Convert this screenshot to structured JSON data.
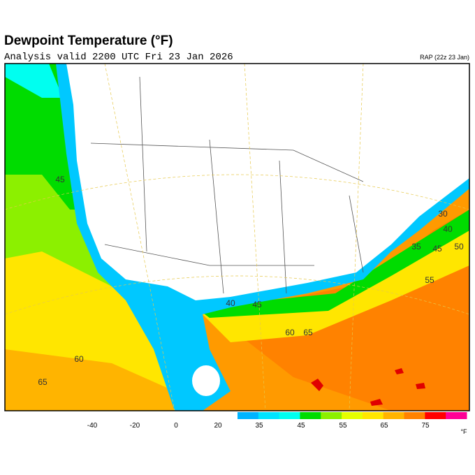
{
  "header": {
    "title": "Dewpoint Temperature (°F)",
    "subtitle": "Analysis valid 2200 UTC Fri 23 Jan 2026",
    "model": "RAP (22z 23 Jan)"
  },
  "contour_labels": [
    45,
    30,
    40,
    35,
    45,
    50,
    55,
    40,
    45,
    60,
    65,
    60,
    65
  ],
  "colorbar": {
    "ticks": [
      -40,
      -20,
      0,
      20,
      35,
      45,
      55,
      65,
      75
    ],
    "colors": [
      "#00b4ff",
      "#00e4ff",
      "#00fff0",
      "#00dc00",
      "#8cf000",
      "#e6ff00",
      "#ffe600",
      "#ffb400",
      "#ff8200",
      "#ff0000",
      "#ff0096"
    ],
    "unit": "°F"
  }
}
